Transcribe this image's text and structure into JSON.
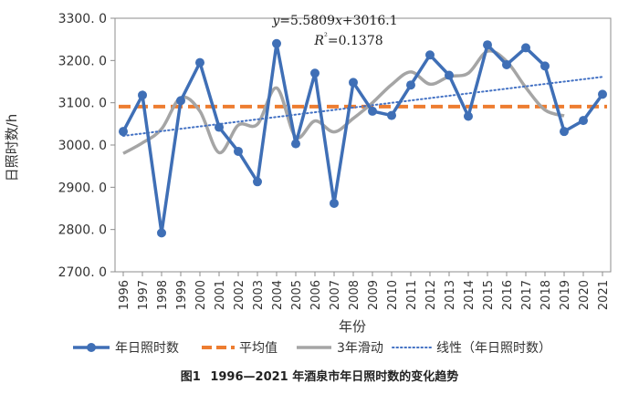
{
  "chart_data": {
    "type": "line",
    "x": [
      1996,
      1997,
      1998,
      1999,
      2000,
      2001,
      2002,
      2003,
      2004,
      2005,
      2006,
      2007,
      2008,
      2009,
      2010,
      2011,
      2012,
      2013,
      2014,
      2015,
      2016,
      2017,
      2018,
      2019,
      2020,
      2021
    ],
    "x_tick_labels": [
      "1996",
      "1997",
      "1998",
      "1999",
      "2000",
      "2001",
      "2002",
      "2003",
      "2004",
      "2005",
      "2006",
      "2007",
      "2008",
      "2009",
      "2010",
      "2011",
      "2012",
      "2013",
      "2014",
      "2015",
      "2016",
      "2017",
      "2018",
      "2019",
      "2020",
      "2021"
    ],
    "xlabel": "年份",
    "ylabel": "日照时数/h",
    "ylim": [
      2700,
      3300
    ],
    "y_ticks": [
      2700,
      2800,
      2900,
      3000,
      3100,
      3200,
      3300
    ],
    "y_tick_labels": [
      "2700. 0",
      "2800. 0",
      "2900. 0",
      "3000. 0",
      "3100. 0",
      "3200. 0",
      "3300. 0"
    ],
    "grid": false,
    "legend_position": "bottom",
    "series": [
      {
        "name": "年日照时数",
        "style": "line-markers",
        "color": "#3f6fb6",
        "values": [
          3032,
          3118,
          2792,
          3105,
          3195,
          3042,
          2985,
          2913,
          3240,
          3003,
          3170,
          2862,
          3148,
          3080,
          3070,
          3142,
          3213,
          3165,
          3068,
          3237,
          3190,
          3230,
          3187,
          3032,
          3058,
          3120
        ]
      },
      {
        "name": "平均值",
        "style": "dashed",
        "color": "#ed7d31",
        "values": [
          3091,
          3091,
          3091,
          3091,
          3091,
          3091,
          3091,
          3091,
          3091,
          3091,
          3091,
          3091,
          3091,
          3091,
          3091,
          3091,
          3091,
          3091,
          3091,
          3091,
          3091,
          3091,
          3091,
          3091,
          3091,
          3091
        ]
      },
      {
        "name": "3年滑动",
        "style": "smooth",
        "color": "#a5a5a5",
        "x": [
          1996,
          1997,
          1998,
          1999,
          2000,
          2001,
          2002,
          2003,
          2004,
          2005,
          2006,
          2007,
          2008,
          2009,
          2010,
          2011,
          2012,
          2013,
          2014,
          2015,
          2016,
          2017,
          2018,
          2019
        ],
        "values": [
          2980,
          3005,
          3038,
          3112,
          3080,
          2982,
          3047,
          3049,
          3135,
          3019,
          3057,
          3031,
          3063,
          3100,
          3143,
          3173,
          3144,
          3162,
          3170,
          3222,
          3198,
          3136,
          3083,
          3069
        ]
      },
      {
        "name": "线性（年日照时数）",
        "style": "dotted",
        "color": "#4472c4",
        "slope": 5.5809,
        "intercept": 3016.1
      }
    ],
    "annotations": {
      "equation": "y=5.5809x+3016.1",
      "r2": "R²=0.1378"
    }
  },
  "caption": {
    "label": "图1",
    "text": "1996—2021 年酒泉市年日照时数的变化趋势"
  }
}
